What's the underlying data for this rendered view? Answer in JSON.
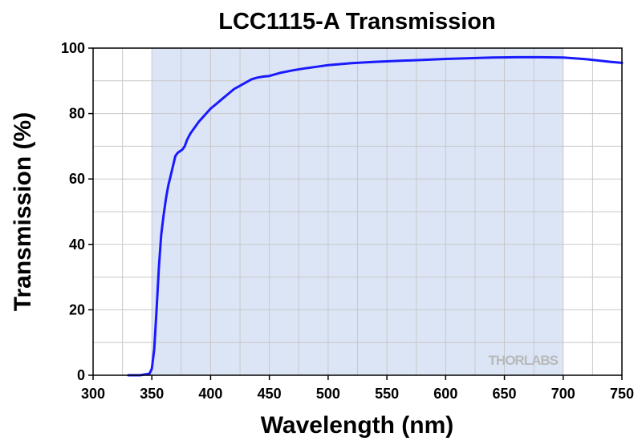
{
  "chart_data": {
    "type": "line",
    "title": "LCC1115-A Transmission",
    "xlabel": "Wavelength (nm)",
    "ylabel": "Transmission (%)",
    "xlim": [
      300,
      750
    ],
    "ylim": [
      0,
      100
    ],
    "x_ticks": [
      300,
      350,
      400,
      450,
      500,
      550,
      600,
      650,
      700,
      750
    ],
    "y_ticks": [
      0,
      20,
      40,
      60,
      80,
      100
    ],
    "x_tick_labels": [
      "300",
      "350",
      "400",
      "450",
      "500",
      "550",
      "600",
      "650",
      "700",
      "750"
    ],
    "y_tick_labels": [
      "0",
      "20",
      "40",
      "60",
      "80",
      "100"
    ],
    "x_minor_step": 25,
    "y_minor_step": 10,
    "grid": true,
    "highlight_band": {
      "x_range": [
        350,
        700
      ],
      "color": "#dce5f6"
    },
    "watermark": "THORLABS",
    "colors": {
      "series": "#1a1aff",
      "grid": "#c8c8c8"
    },
    "series": [
      {
        "color": "#1a1aff",
        "x": [
          330,
          340,
          348,
          350,
          352,
          354,
          356,
          358,
          360,
          362,
          364,
          366,
          368,
          370,
          372,
          374,
          376,
          378,
          380,
          383,
          386,
          390,
          395,
          400,
          405,
          410,
          415,
          420,
          425,
          430,
          435,
          440,
          445,
          450,
          460,
          470,
          480,
          490,
          500,
          520,
          540,
          560,
          580,
          600,
          620,
          640,
          660,
          680,
          700,
          720,
          740,
          750
        ],
        "y": [
          0,
          0,
          0.5,
          2,
          8,
          20,
          33,
          43,
          49,
          54,
          58,
          61,
          64,
          67,
          68,
          68.5,
          69,
          70,
          72,
          74,
          75.5,
          77.5,
          79.5,
          81.5,
          83,
          84.5,
          86,
          87.5,
          88.5,
          89.5,
          90.5,
          91,
          91.3,
          91.5,
          92.5,
          93.2,
          93.8,
          94.3,
          94.8,
          95.4,
          95.8,
          96.1,
          96.4,
          96.7,
          96.9,
          97.1,
          97.2,
          97.2,
          97.1,
          96.6,
          95.8,
          95.5
        ]
      }
    ]
  }
}
